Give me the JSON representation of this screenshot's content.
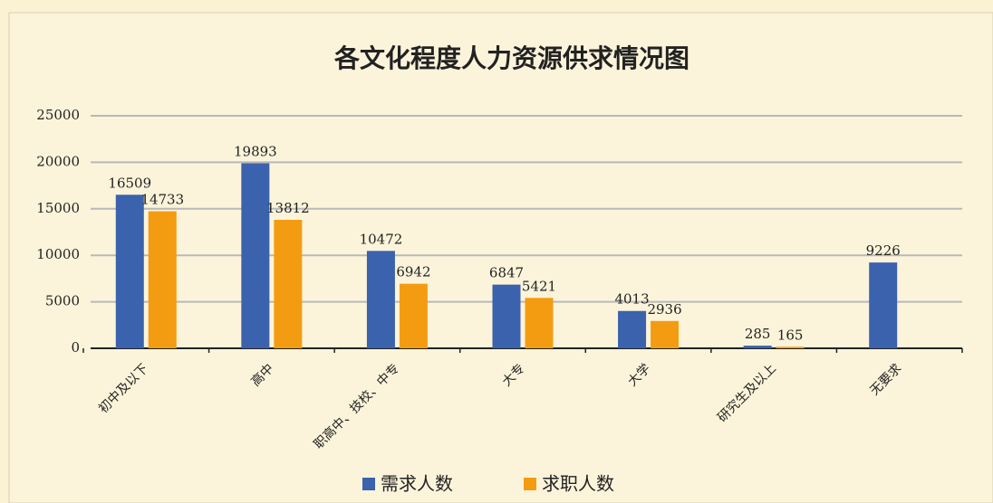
{
  "chart_data": {
    "type": "bar",
    "title": "各文化程度人力资源供求情况图",
    "categories": [
      "初中及以下",
      "高中",
      "职高中、技校、中专",
      "大专",
      "大学",
      "研究生及以上",
      "无要求"
    ],
    "series": [
      {
        "name": "需求人数",
        "color": "#3a62ad",
        "values": [
          16509,
          19893,
          10472,
          6847,
          4013,
          285,
          9226
        ]
      },
      {
        "name": "求职人数",
        "color": "#f39c12",
        "values": [
          14733,
          13812,
          6942,
          5421,
          2936,
          165,
          null
        ]
      }
    ],
    "ylim": [
      0,
      25000
    ],
    "yticks": [
      0,
      5000,
      10000,
      15000,
      20000,
      25000
    ],
    "grid": true,
    "legend": "bottom"
  }
}
